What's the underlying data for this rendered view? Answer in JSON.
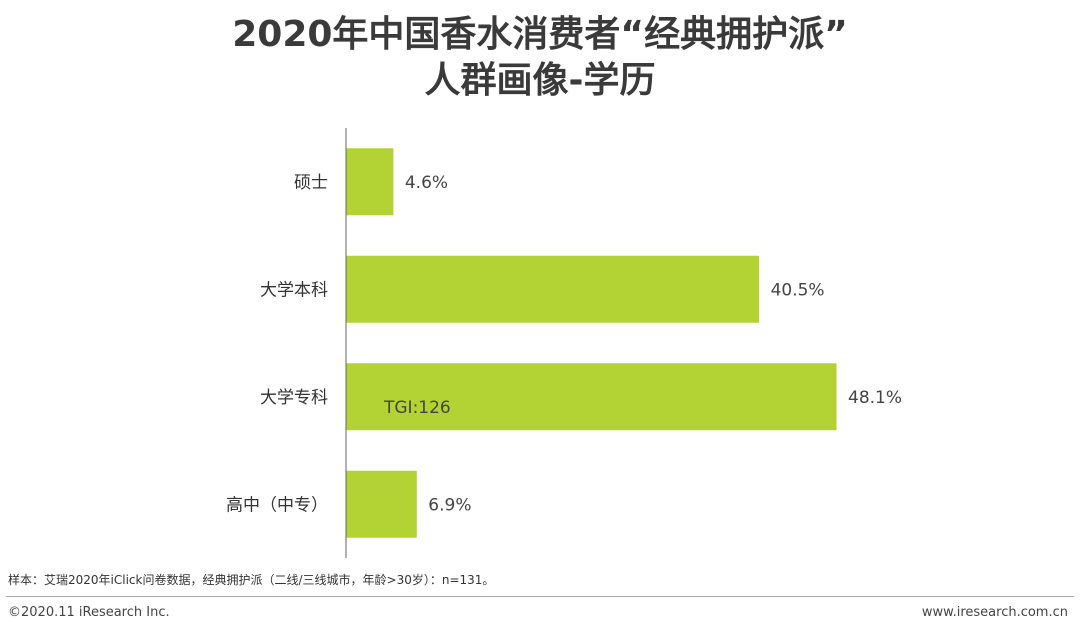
{
  "header": {
    "title_line1": "2020年中国香水消费者“经典拥护派”",
    "title_line2": "人群画像-学历"
  },
  "chart_data": {
    "type": "bar",
    "orientation": "horizontal",
    "categories": [
      "硕士",
      "大学本科",
      "大学专科",
      "高中（中专）"
    ],
    "values": [
      4.6,
      40.5,
      48.1,
      6.9
    ],
    "value_labels": [
      "4.6%",
      "40.5%",
      "48.1%",
      "6.9%"
    ],
    "unit": "%",
    "xlim": [
      0,
      55
    ],
    "grid": false,
    "bar_color": "#b3d335",
    "annotations": [
      {
        "category": "大学专科",
        "text": "TGI:126"
      }
    ]
  },
  "footer": {
    "note": "样本：艾瑞2020年iClick问卷数据，经典拥护派（二线/三线城市，年龄>30岁）：n=131。",
    "copyright": "©2020.11 iResearch Inc.",
    "website": "www.iresearch.com.cn"
  }
}
